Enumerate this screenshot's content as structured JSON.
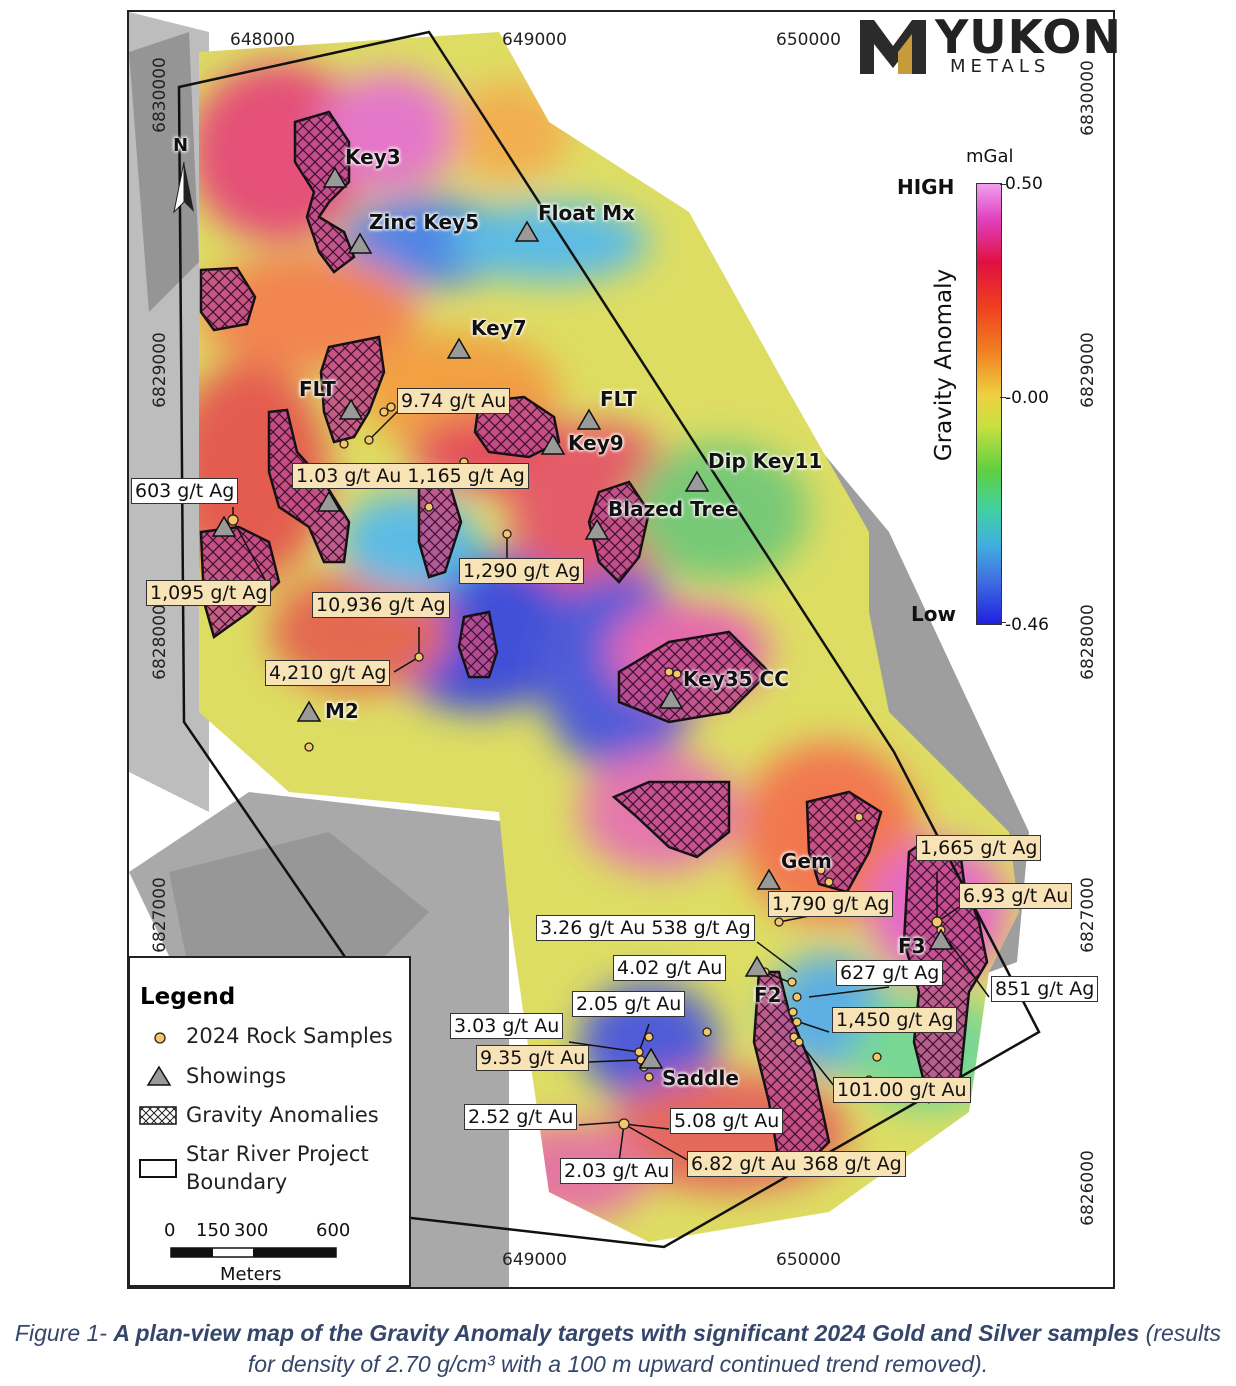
{
  "logo": {
    "word": "YUKON",
    "sub": "METALS"
  },
  "coords": {
    "top_x": [
      "648000",
      "649000",
      "650000"
    ],
    "bottom_x": [
      "649000",
      "650000"
    ],
    "left_y": [
      "6830000",
      "6829000",
      "6828000",
      "6827000"
    ],
    "right_y": [
      "6830000",
      "6829000",
      "6828000",
      "6827000",
      "6826000"
    ]
  },
  "north_label": "N",
  "colorbar": {
    "unit": "mGal",
    "high_label": "HIGH",
    "low_label": "Low",
    "max_label": "0.50",
    "mid_label": "-0.00",
    "min_label": "-0.46",
    "axis_title": "Gravity Anomaly"
  },
  "showings": [
    "Key3",
    "Zinc Key5",
    "Float Mx",
    "Key7",
    "FLT",
    "FLT",
    "Key9",
    "Dip Key11",
    "Blazed Tree",
    "Key35 CC",
    "M2",
    "Gem",
    "F3",
    "F2",
    "Saddle"
  ],
  "samples": [
    {
      "text": "9.74 g/t Au",
      "style": "au-box"
    },
    {
      "text": "1.03 g/t Au 1,165 g/t Ag",
      "style": "au-box"
    },
    {
      "text": "603 g/t Ag",
      "style": "plain"
    },
    {
      "text": "1,095 g/t Ag",
      "style": "au-box"
    },
    {
      "text": "1,290 g/t Ag",
      "style": "au-box"
    },
    {
      "text": "10,936 g/t Ag",
      "style": "au-box"
    },
    {
      "text": "4,210 g/t Ag",
      "style": "au-box"
    },
    {
      "text": "1,665 g/t Ag",
      "style": "au-box"
    },
    {
      "text": "6.93 g/t Au",
      "style": "au-box"
    },
    {
      "text": "1,790 g/t Ag",
      "style": "au-box"
    },
    {
      "text": "3.26 g/t Au 538 g/t Ag",
      "style": "plain"
    },
    {
      "text": "4.02 g/t Au",
      "style": "plain"
    },
    {
      "text": "627 g/t Ag",
      "style": "plain"
    },
    {
      "text": "851 g/t Ag",
      "style": "plain"
    },
    {
      "text": "2.05 g/t Au",
      "style": "plain"
    },
    {
      "text": "3.03 g/t Au",
      "style": "plain"
    },
    {
      "text": "1,450 g/t Ag",
      "style": "au-box"
    },
    {
      "text": "9.35 g/t Au",
      "style": "au-box"
    },
    {
      "text": "101.00 g/t Au",
      "style": "au-box"
    },
    {
      "text": "2.52 g/t Au",
      "style": "plain"
    },
    {
      "text": "5.08 g/t Au",
      "style": "plain"
    },
    {
      "text": "2.03 g/t Au",
      "style": "plain"
    },
    {
      "text": "6.82 g/t Au 368 g/t Ag",
      "style": "au-box"
    }
  ],
  "legend": {
    "title": "Legend",
    "items": [
      "2024 Rock Samples",
      "Showings",
      "Gravity Anomalies",
      "Star River Project",
      "Boundary"
    ],
    "scale_ticks": [
      "0",
      "150",
      "300",
      "600"
    ],
    "scale_unit": "Meters"
  },
  "caption": {
    "prefix": "Figure 1- ",
    "bold": "A plan-view map of the Gravity Anomaly targets with significant 2024 Gold and Silver samples",
    "rest": " (results for density of 2.70 g/cm³ with a 100 m upward continued trend removed)."
  },
  "colors": {
    "sample_dot": "#f6c768",
    "anomaly_fill": "#c04a8a",
    "boundary": "#111111",
    "caption": "#34466a"
  }
}
